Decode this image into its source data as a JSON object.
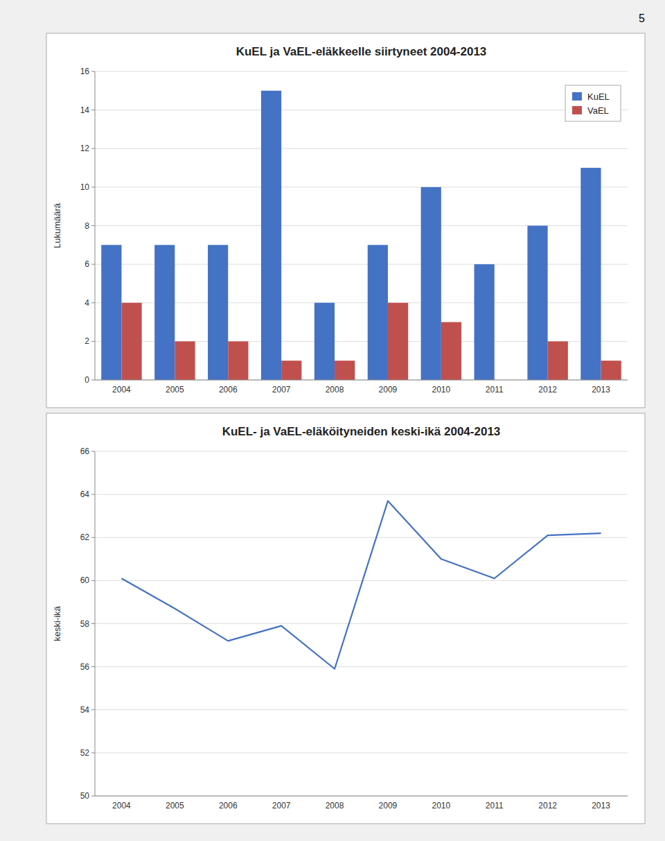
{
  "page_number": "5",
  "chart_data": [
    {
      "type": "bar",
      "title": "KuEL ja VaEL-eläkkeelle siirtyneet 2004-2013",
      "y_label": "Lukumäärä",
      "categories": [
        "2004",
        "2005",
        "2006",
        "2007",
        "2008",
        "2009",
        "2010",
        "2011",
        "2012",
        "2013"
      ],
      "series": [
        {
          "name": "KuEL",
          "color": "#4472C4",
          "values": [
            7,
            7,
            7,
            15,
            4,
            7,
            10,
            6,
            8,
            11
          ]
        },
        {
          "name": "VaEL",
          "color": "#C0504D",
          "values": [
            4,
            2,
            2,
            1,
            1,
            4,
            3,
            0,
            2,
            1
          ]
        }
      ],
      "ylim": [
        0,
        16
      ],
      "yticks": [
        0,
        2,
        4,
        6,
        8,
        10,
        12,
        14,
        16
      ],
      "grid": true,
      "legend": "upper right"
    },
    {
      "type": "line",
      "title": "KuEL- ja VaEL-eläköityneiden keski-ikä 2004-2013",
      "y_label": "keski-ikä",
      "categories": [
        "2004",
        "2005",
        "2006",
        "2007",
        "2008",
        "2009",
        "2010",
        "2011",
        "2012",
        "2013"
      ],
      "values": [
        60.1,
        58.7,
        57.2,
        57.9,
        55.9,
        63.7,
        61.0,
        60.1,
        62.1,
        62.2
      ],
      "color": "#4472C4",
      "ylim": [
        50,
        66
      ],
      "yticks": [
        50,
        52,
        54,
        56,
        58,
        60,
        62,
        64,
        66
      ],
      "grid": true
    }
  ]
}
